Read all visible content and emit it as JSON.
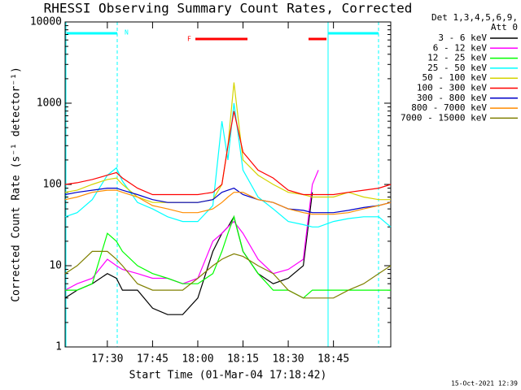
{
  "chart_data": {
    "type": "line",
    "title": "RHESSI Observing Summary Count Rates, Corrected",
    "xlabel": "Start Time (01-Mar-04 17:18:42)",
    "ylabel": "Corrected Count Rate (s⁻¹ detector⁻¹)",
    "legend_title": [
      "Det 1,3,4,5,6,9,",
      "Att 0"
    ],
    "footer": "15-Oct-2021 12:39",
    "annotations": [
      "N",
      "F"
    ],
    "log_y": true,
    "legend": "right",
    "xlim": [
      "17:16",
      "19:04"
    ],
    "xticks": [
      "17:30",
      "17:45",
      "18:00",
      "18:15",
      "18:30",
      "18:45"
    ],
    "ylim": [
      1,
      10000
    ],
    "yticks": [
      1,
      10,
      100,
      1000,
      10000
    ],
    "x": [
      "17:16",
      "17:20",
      "17:25",
      "17:30",
      "17:33",
      "17:35",
      "17:40",
      "17:45",
      "17:50",
      "17:55",
      "18:00",
      "18:05",
      "18:08",
      "18:10",
      "18:12",
      "18:15",
      "18:20",
      "18:25",
      "18:30",
      "18:35",
      "18:38",
      "18:40",
      "18:45",
      "18:50",
      "18:55",
      "19:00",
      "19:04"
    ],
    "series": [
      {
        "name": "3 - 6 keV",
        "color": "#000000",
        "values": [
          4,
          5,
          6,
          8,
          7,
          5,
          5,
          3,
          2.5,
          2.5,
          4,
          15,
          25,
          30,
          40,
          15,
          8,
          6,
          7,
          10,
          80,
          null,
          null,
          null,
          null,
          null,
          null
        ]
      },
      {
        "name": "6 - 12 keV",
        "color": "#ff00ff",
        "values": [
          5,
          6,
          7,
          12,
          10,
          9,
          8,
          7,
          7,
          6,
          7,
          20,
          25,
          30,
          35,
          25,
          12,
          8,
          9,
          12,
          100,
          150,
          null,
          null,
          null,
          null,
          null
        ]
      },
      {
        "name": "12 - 25 keV",
        "color": "#00ff00",
        "values": [
          5,
          5,
          6,
          25,
          20,
          15,
          10,
          8,
          7,
          6,
          6,
          8,
          15,
          25,
          40,
          15,
          8,
          5,
          5,
          4,
          5,
          5,
          5,
          5,
          5,
          5,
          5
        ]
      },
      {
        "name": "25 - 50 keV",
        "color": "#00ffff",
        "values": [
          40,
          45,
          65,
          130,
          160,
          110,
          60,
          50,
          40,
          35,
          35,
          55,
          600,
          200,
          1000,
          150,
          70,
          50,
          35,
          32,
          30,
          30,
          35,
          38,
          40,
          40,
          30
        ]
      },
      {
        "name": "50 - 100 keV",
        "color": "#d4d400",
        "values": [
          80,
          85,
          100,
          115,
          120,
          100,
          70,
          60,
          60,
          60,
          60,
          65,
          100,
          300,
          1800,
          200,
          130,
          100,
          80,
          75,
          70,
          70,
          70,
          80,
          70,
          65,
          65
        ]
      },
      {
        "name": "100 - 300 keV",
        "color": "#ff0000",
        "values": [
          100,
          105,
          115,
          130,
          140,
          120,
          90,
          75,
          75,
          75,
          75,
          80,
          100,
          300,
          800,
          250,
          150,
          120,
          85,
          75,
          75,
          75,
          75,
          80,
          85,
          90,
          100
        ]
      },
      {
        "name": "300 - 800 keV",
        "color": "#0000c8",
        "values": [
          75,
          80,
          85,
          90,
          90,
          85,
          75,
          65,
          60,
          60,
          60,
          65,
          80,
          85,
          90,
          75,
          65,
          60,
          50,
          48,
          45,
          45,
          45,
          48,
          52,
          55,
          60
        ]
      },
      {
        "name": "800 - 7000 keV",
        "color": "#ff8c00",
        "values": [
          65,
          70,
          80,
          85,
          85,
          80,
          70,
          55,
          50,
          45,
          45,
          50,
          60,
          70,
          80,
          80,
          65,
          60,
          50,
          45,
          43,
          43,
          43,
          45,
          50,
          55,
          60
        ]
      },
      {
        "name": "7000 - 15000 keV",
        "color": "#808000",
        "values": [
          8,
          10,
          15,
          15,
          12,
          10,
          6,
          5,
          5,
          5,
          7,
          10,
          12,
          13,
          14,
          13,
          10,
          8,
          5,
          4,
          4,
          4,
          4,
          5,
          6,
          8,
          10
        ]
      }
    ]
  }
}
